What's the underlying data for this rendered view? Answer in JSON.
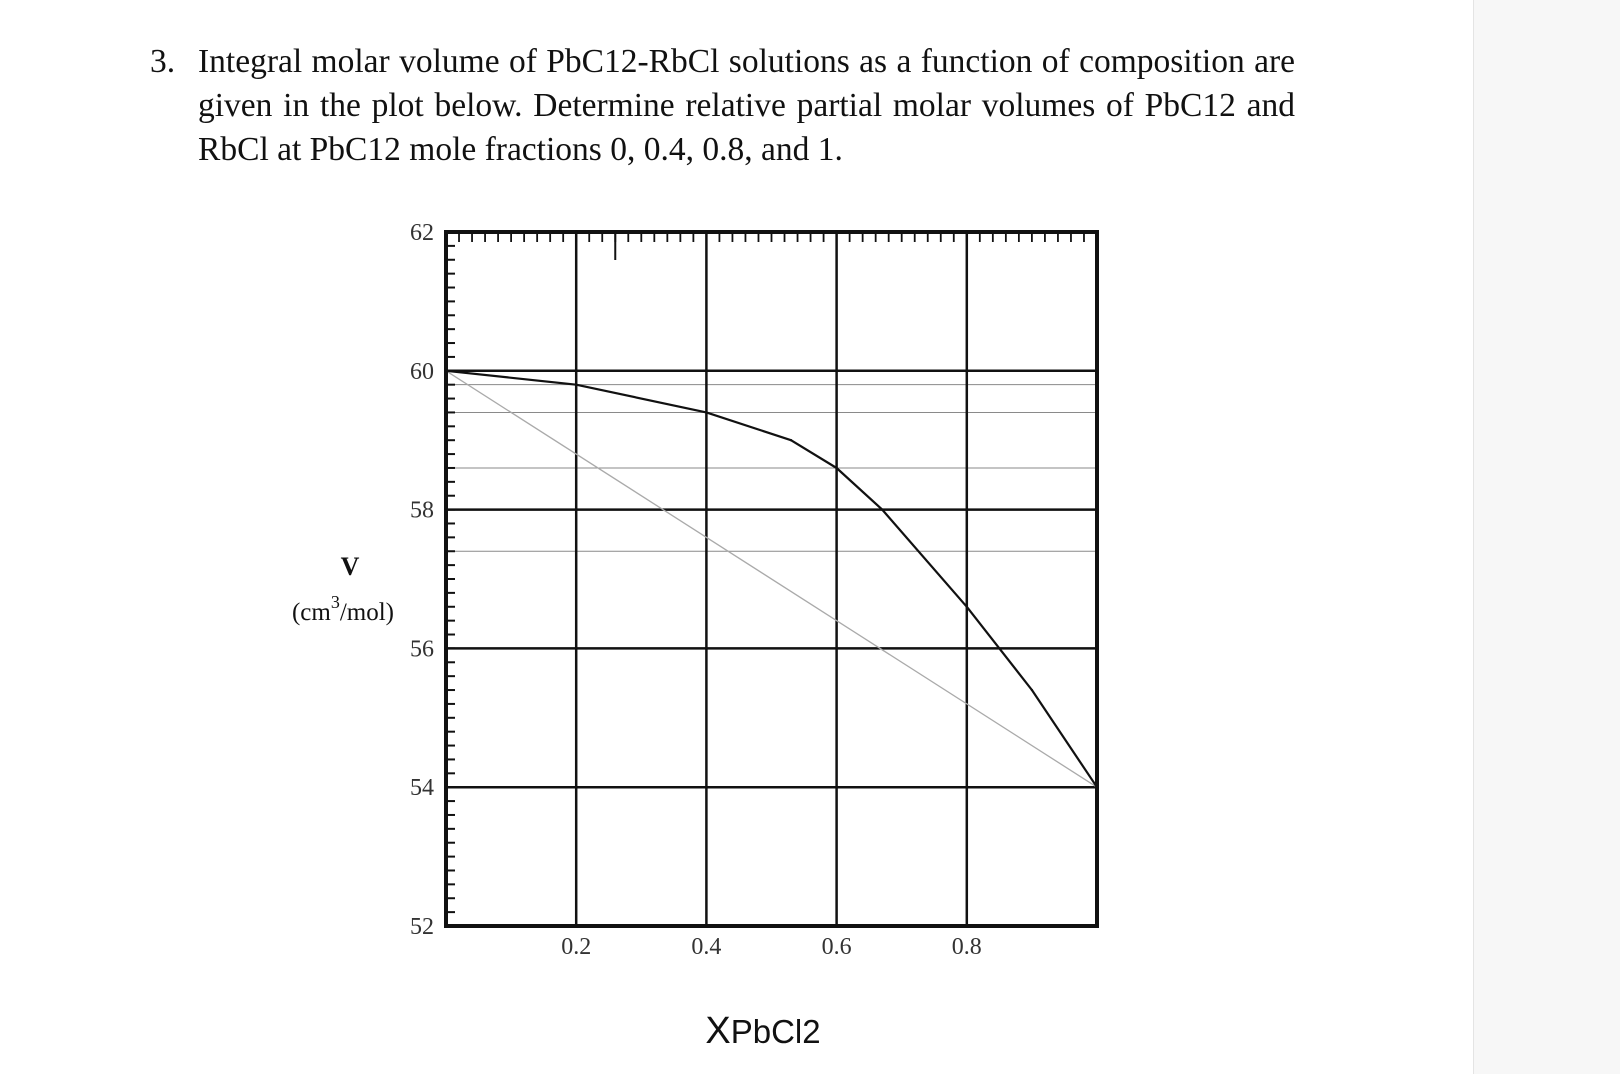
{
  "question": {
    "number": "3.",
    "text": "Integral molar volume of PbC12-RbCl solutions as a function of composition are given in the plot below.  Determine relative partial molar volumes of PbC12 and RbCl at PbC12 mole fractions 0, 0.4, 0.8, and 1."
  },
  "chart_data": {
    "type": "line",
    "x": [
      0,
      0.2,
      0.4,
      0.53,
      0.6,
      0.67,
      0.8,
      0.9,
      1.0
    ],
    "series": [
      {
        "values": [
          60,
          59.8,
          59.4,
          59.0,
          58.6,
          58.0,
          56.6,
          55.4,
          54.0
        ],
        "color": "#111111"
      }
    ],
    "reference_line": {
      "x": [
        0,
        1
      ],
      "values": [
        60,
        54
      ],
      "color": "#aaaaaa"
    },
    "xlabel": "XPbCl2",
    "ylabel": "V",
    "ylabel_units": "(cm3/mol)",
    "xlim": [
      0,
      1
    ],
    "ylim": [
      52,
      62
    ],
    "x_ticks": [
      0.2,
      0.4,
      0.6,
      0.8
    ],
    "x_tick_labels": [
      "0.2",
      "0.4",
      "0.6",
      "0.8"
    ],
    "y_ticks": [
      52,
      54,
      56,
      58,
      60,
      62
    ],
    "y_tick_labels": [
      "52",
      "54",
      "56",
      "58",
      "60",
      "62"
    ],
    "y_minor_lines": [
      57.4,
      58.6,
      59.4,
      59.8
    ],
    "grid": true
  }
}
